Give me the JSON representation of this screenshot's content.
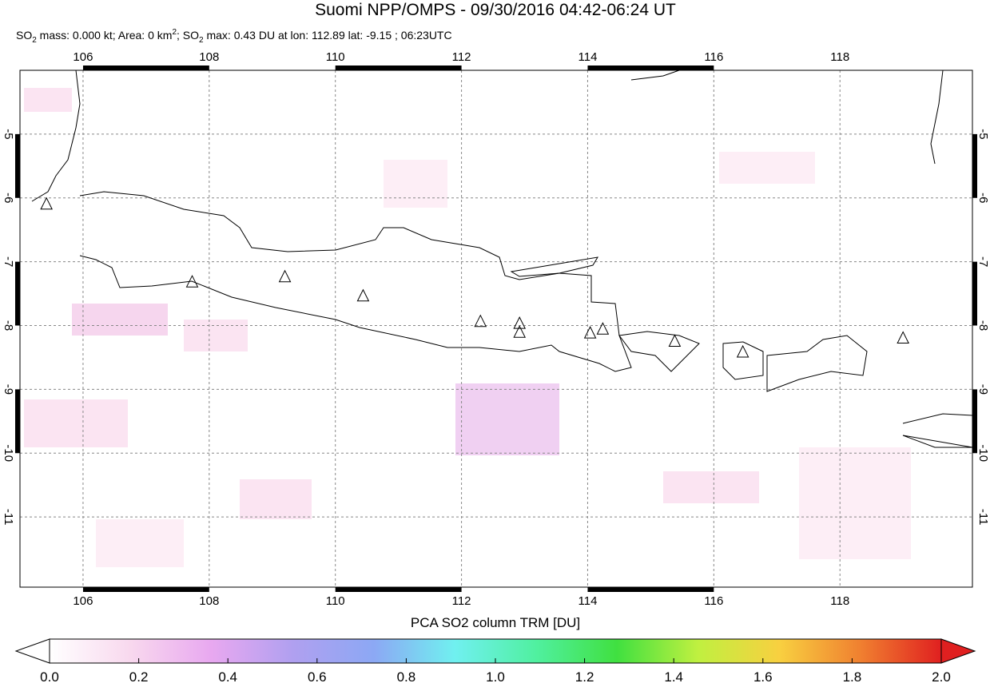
{
  "chart_data": {
    "type": "map",
    "title": "Suomi NPP/OMPS - 09/30/2016 04:42-06:24 UT",
    "subtitle": [
      "SO",
      "2",
      " mass: 0.000 kt; Area: 0 km",
      "2",
      "; SO",
      "2",
      " max: 0.43 DU at lon: 112.89 lat: -9.15 ; 06:23UTC"
    ],
    "xlim": [
      105,
      120.1
    ],
    "ylim": [
      -12.1,
      -4
    ],
    "xticks": [
      106,
      108,
      110,
      112,
      114,
      116,
      118
    ],
    "yticks": [
      -5,
      -6,
      -7,
      -8,
      -9,
      -10,
      -11
    ],
    "grid": true,
    "volcanoes": {
      "lon": [
        105.42,
        107.73,
        109.2,
        110.44,
        112.3,
        112.92,
        112.92,
        114.04,
        114.24,
        115.38,
        116.46,
        119.0
      ],
      "lat": [
        -6.1,
        -7.32,
        -7.24,
        -7.54,
        -7.94,
        -7.97,
        -8.11,
        -8.12,
        -8.06,
        -8.25,
        -8.42,
        -8.2
      ]
    },
    "colorbar": {
      "label": "PCA SO2 column TRM [DU]",
      "lim": [
        0,
        2
      ],
      "ticks": [
        {
          "value": 0,
          "label": "0.0"
        },
        {
          "value": 0.2,
          "label": "0.2"
        },
        {
          "value": 0.4,
          "label": "0.4"
        },
        {
          "value": 0.6,
          "label": "0.6"
        },
        {
          "value": 0.8,
          "label": "0.8"
        },
        {
          "value": 1,
          "label": "1.0"
        },
        {
          "value": 1.2,
          "label": "1.2"
        },
        {
          "value": 1.4,
          "label": "1.4"
        },
        {
          "value": 1.6,
          "label": "1.6"
        },
        {
          "value": 1.8,
          "label": "1.8"
        },
        {
          "value": 2,
          "label": "2.0"
        }
      ],
      "colors": [
        "#ffffff",
        "#f8d8ee",
        "#e8a8f0",
        "#b0a0f0",
        "#8ca8f4",
        "#70f0f0",
        "#50f0a0",
        "#40e040",
        "#c0f040",
        "#f8d040",
        "#f08030",
        "#e02020"
      ]
    }
  }
}
